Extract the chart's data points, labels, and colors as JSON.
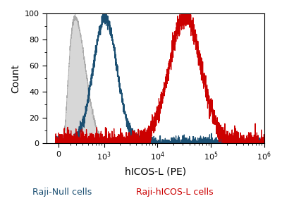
{
  "xlabel": "hICOS-L (PE)",
  "ylabel": "Count",
  "ylim": [
    0,
    100
  ],
  "yticks": [
    0,
    20,
    40,
    60,
    80,
    100
  ],
  "xlim": [
    -200,
    1000000
  ],
  "linthresh": 300,
  "gray_peak_log": 2.45,
  "gray_sigma_log": 0.2,
  "gray_peak_height": 97,
  "gray_color": "#aaaaaa",
  "gray_fill": "#d0d0d0",
  "teal_peak_log": 3.02,
  "teal_sigma_log": 0.22,
  "teal_peak_height": 97,
  "teal_color": "#1b4f72",
  "red_peak_log": 4.52,
  "red_sigma_log": 0.3,
  "red_peak_height": 98,
  "red_color": "#cc0000",
  "legend_teal_label": "Raji-Null cells",
  "legend_red_label": "Raji-hICOS-L cells",
  "bg_color": "#ffffff",
  "noise_seed": 42
}
